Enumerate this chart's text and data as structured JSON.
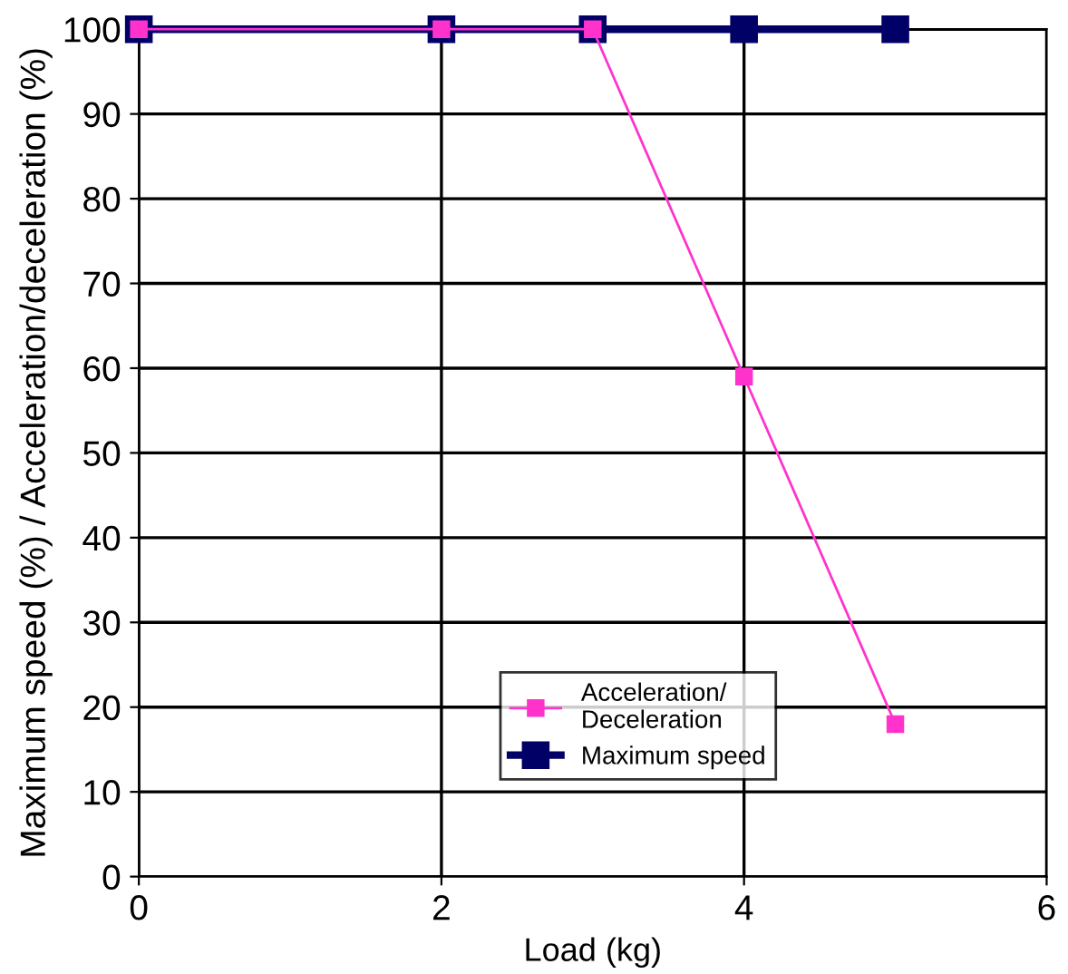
{
  "chart_data": {
    "type": "line",
    "xlabel": "Load (kg)",
    "ylabel": "Maximum speed (%) / Acceleration/deceleration (%)",
    "xlim": [
      0,
      6
    ],
    "xticks": [
      0,
      2,
      4,
      6
    ],
    "ylim": [
      0,
      100
    ],
    "yticks": [
      0,
      10,
      20,
      30,
      40,
      50,
      60,
      70,
      80,
      90,
      100
    ],
    "grid": true,
    "legend": "bottom",
    "marker": "square",
    "line_style": "solid",
    "series": [
      {
        "name": "Acceleration/\nDeceleration",
        "color": "#ff33cc",
        "x": [
          0,
          2,
          3,
          4,
          5
        ],
        "values": [
          100,
          100,
          100,
          59,
          18
        ]
      },
      {
        "name": "Maximum speed",
        "color": "#000066",
        "x": [
          0,
          2,
          3,
          4,
          5
        ],
        "values": [
          100,
          100,
          100,
          100,
          100
        ]
      }
    ]
  }
}
